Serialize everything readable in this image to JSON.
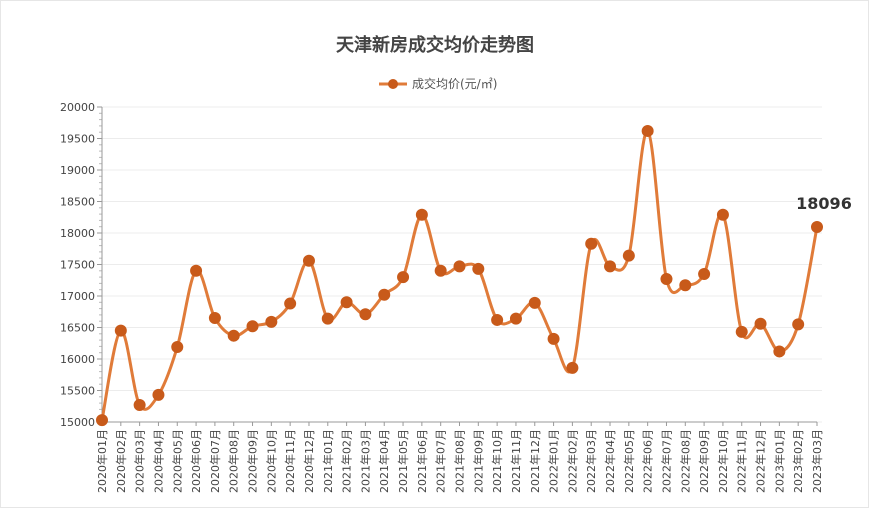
{
  "chart_data": {
    "type": "line",
    "title": "天津新房成交均价走势图",
    "xlabel": "",
    "ylabel": "",
    "ylim": [
      15000,
      20000
    ],
    "yticks": [
      15000,
      15500,
      16000,
      16500,
      17000,
      17500,
      18000,
      18500,
      19000,
      19500,
      20000
    ],
    "grid": true,
    "legend_position": "top-center",
    "color": "#e07b39",
    "marker_color": "#c85a1a",
    "categories": [
      "2020年01月",
      "2020年02月",
      "2020年03月",
      "2020年04月",
      "2020年05月",
      "2020年06月",
      "2020年07月",
      "2020年08月",
      "2020年09月",
      "2020年10月",
      "2020年11月",
      "2020年12月",
      "2021年01月",
      "2021年02月",
      "2021年03月",
      "2021年04月",
      "2021年05月",
      "2021年06月",
      "2021年07月",
      "2021年08月",
      "2021年09月",
      "2021年10月",
      "2021年11月",
      "2021年12月",
      "2022年01月",
      "2022年02月",
      "2022年03月",
      "2022年04月",
      "2022年05月",
      "2022年06月",
      "2022年07月",
      "2022年08月",
      "2022年09月",
      "2022年10月",
      "2022年11月",
      "2022年12月",
      "2023年01月",
      "2023年02月",
      "2023年03月"
    ],
    "series": [
      {
        "name": "成交均价(元/㎡)",
        "values": [
          15030,
          16450,
          15270,
          15430,
          16190,
          17400,
          16650,
          16370,
          16520,
          16590,
          16880,
          17560,
          16640,
          16900,
          16710,
          17020,
          17300,
          18290,
          17400,
          17470,
          17430,
          16620,
          16640,
          16890,
          16320,
          15860,
          17830,
          17470,
          17640,
          19620,
          17270,
          17170,
          17350,
          18290,
          16430,
          16560,
          16120,
          16550,
          18096
        ]
      }
    ],
    "annotation": "18096"
  }
}
